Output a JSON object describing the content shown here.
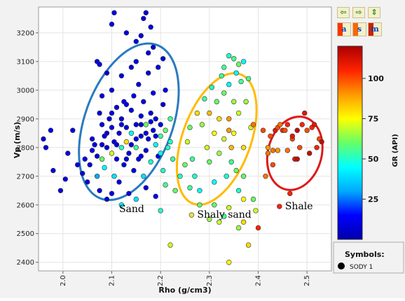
{
  "chart_data": {
    "type": "scatter",
    "title": "",
    "xlabel": "Rho (g/cm3)",
    "ylabel": "Vp (m/s)",
    "xlim": [
      1.95,
      2.55
    ],
    "ylim": [
      2370,
      3290
    ],
    "xticks": [
      2.0,
      2.1,
      2.2,
      2.3,
      2.4,
      2.5
    ],
    "xtick_labels": [
      "2.0",
      "2.1",
      "2.2",
      "2.3",
      "2.4",
      "2.5"
    ],
    "yticks": [
      2400,
      2500,
      2600,
      2700,
      2800,
      2900,
      3000,
      3100,
      3200
    ],
    "ytick_labels": [
      "2400",
      "2500",
      "2600",
      "2700",
      "2800",
      "2900",
      "3000",
      "3100",
      "3200"
    ],
    "grid": true,
    "colorbar": {
      "label": "GR (API)",
      "range": [
        0,
        120
      ],
      "ticks": [
        25,
        50,
        75,
        100
      ],
      "tick_labels": [
        "25",
        "50",
        "75",
        "100"
      ],
      "colormap": [
        "#0000aa",
        "#0000ff",
        "#00aaff",
        "#00ffff",
        "#66ff66",
        "#ffff00",
        "#ff9900",
        "#ff2200",
        "#aa0000"
      ]
    },
    "legend": {
      "title": "Symbols:",
      "entries": [
        {
          "label": "SODY 1",
          "color": "#000000"
        }
      ]
    },
    "annotations": [
      {
        "text": "Sand",
        "x": 2.115,
        "y": 2575,
        "color": "#000000"
      },
      {
        "text": "Shaly sand",
        "x": 2.275,
        "y": 2555,
        "color": "#000000",
        "marker_color": "#f0e040"
      },
      {
        "text": "Shale",
        "x": 2.455,
        "y": 2585,
        "color": "#000000",
        "marker_color": "#ff2200"
      }
    ],
    "ellipses": [
      {
        "name": "Sand",
        "cx": 2.135,
        "cy": 2890,
        "rx": 0.09,
        "ry": 285,
        "rotation": 20,
        "color": "#2a7ac0"
      },
      {
        "name": "Shaly sand",
        "cx": 2.315,
        "cy": 2830,
        "rx": 0.07,
        "ry": 240,
        "rotation": 20,
        "color": "#ffbb00"
      },
      {
        "name": "Shale",
        "cx": 2.475,
        "cy": 2780,
        "rx": 0.055,
        "ry": 130,
        "rotation": 15,
        "color": "#e01818"
      }
    ],
    "series": [
      {
        "points": [
          [
            1.96,
            2830,
            10
          ],
          [
            1.965,
            2800,
            10
          ],
          [
            1.975,
            2860,
            12
          ],
          [
            1.98,
            2720,
            10
          ],
          [
            1.995,
            2650,
            10
          ],
          [
            2.005,
            2690,
            12
          ],
          [
            2.01,
            2780,
            10
          ],
          [
            2.02,
            2860,
            10
          ],
          [
            2.03,
            2740,
            12
          ],
          [
            2.04,
            2710,
            10
          ],
          [
            2.045,
            2760,
            15
          ],
          [
            2.05,
            2680,
            10
          ],
          [
            2.055,
            2740,
            10
          ],
          [
            2.06,
            2830,
            12
          ],
          [
            2.065,
            2810,
            10
          ],
          [
            2.07,
            2770,
            8
          ],
          [
            2.07,
            2700,
            30
          ],
          [
            2.075,
            2650,
            10
          ],
          [
            2.075,
            2920,
            10
          ],
          [
            2.08,
            2880,
            12
          ],
          [
            2.08,
            2760,
            60
          ],
          [
            2.085,
            2840,
            10
          ],
          [
            2.085,
            2730,
            45
          ],
          [
            2.09,
            2800,
            10
          ],
          [
            2.09,
            2620,
            10
          ],
          [
            2.095,
            2900,
            8
          ],
          [
            2.1,
            3000,
            10
          ],
          [
            2.1,
            2870,
            12
          ],
          [
            2.1,
            2780,
            70
          ],
          [
            2.105,
            2820,
            10
          ],
          [
            2.105,
            2700,
            40
          ],
          [
            2.11,
            2940,
            10
          ],
          [
            2.11,
            2760,
            15
          ],
          [
            2.115,
            2850,
            8
          ],
          [
            2.115,
            2680,
            10
          ],
          [
            2.12,
            3050,
            10
          ],
          [
            2.12,
            2800,
            50
          ],
          [
            2.12,
            2900,
            10
          ],
          [
            2.125,
            2740,
            10
          ],
          [
            2.125,
            2960,
            12
          ],
          [
            2.13,
            2870,
            10
          ],
          [
            2.13,
            2820,
            80
          ],
          [
            2.135,
            2780,
            10
          ],
          [
            2.135,
            2640,
            10
          ],
          [
            2.14,
            2930,
            10
          ],
          [
            2.14,
            2850,
            45
          ],
          [
            2.145,
            2720,
            10
          ],
          [
            2.145,
            2980,
            12
          ],
          [
            2.15,
            2880,
            10
          ],
          [
            2.15,
            2800,
            55
          ],
          [
            2.155,
            2760,
            10
          ],
          [
            2.155,
            3020,
            10
          ],
          [
            2.16,
            2910,
            12
          ],
          [
            2.16,
            2840,
            10
          ],
          [
            2.165,
            2700,
            40
          ],
          [
            2.165,
            2960,
            10
          ],
          [
            2.17,
            2880,
            60
          ],
          [
            2.17,
            2790,
            10
          ],
          [
            2.175,
            3060,
            10
          ],
          [
            2.175,
            2830,
            12
          ],
          [
            2.18,
            2920,
            10
          ],
          [
            2.18,
            2750,
            50
          ],
          [
            2.185,
            2860,
            10
          ],
          [
            2.185,
            2990,
            15
          ],
          [
            2.19,
            2810,
            45
          ],
          [
            2.19,
            2900,
            10
          ],
          [
            2.195,
            3080,
            10
          ],
          [
            2.195,
            2770,
            12
          ],
          [
            2.2,
            2880,
            10
          ],
          [
            2.2,
            2840,
            55
          ],
          [
            2.205,
            2950,
            10
          ],
          [
            2.205,
            2720,
            50
          ],
          [
            2.21,
            2860,
            60
          ],
          [
            2.21,
            3000,
            12
          ],
          [
            2.215,
            2800,
            50
          ],
          [
            2.22,
            2900,
            55
          ],
          [
            2.06,
            2790,
            12
          ],
          [
            2.09,
            2850,
            10
          ],
          [
            2.11,
            2810,
            10
          ],
          [
            2.13,
            2760,
            10
          ],
          [
            2.15,
            2830,
            12
          ],
          [
            2.17,
            2850,
            10
          ],
          [
            2.19,
            2840,
            10
          ],
          [
            2.12,
            2880,
            12
          ],
          [
            2.14,
            2810,
            10
          ],
          [
            2.16,
            2770,
            12
          ],
          [
            2.18,
            2890,
            10
          ],
          [
            2.1,
            2920,
            10
          ],
          [
            2.13,
            2950,
            12
          ],
          [
            2.16,
            2880,
            10
          ],
          [
            2.08,
            2810,
            10
          ],
          [
            2.2,
            2780,
            45
          ],
          [
            2.22,
            2820,
            50
          ],
          [
            2.225,
            2760,
            55
          ],
          [
            2.1,
            3230,
            10
          ],
          [
            2.105,
            3270,
            12
          ],
          [
            2.13,
            3200,
            10
          ],
          [
            2.15,
            3170,
            12
          ],
          [
            2.165,
            3250,
            10
          ],
          [
            2.17,
            3270,
            10
          ],
          [
            2.18,
            3220,
            12
          ],
          [
            2.16,
            3190,
            10
          ],
          [
            2.14,
            3080,
            10
          ],
          [
            2.15,
            3100,
            12
          ],
          [
            2.175,
            3130,
            10
          ],
          [
            2.185,
            3150,
            10
          ],
          [
            2.07,
            3100,
            10
          ],
          [
            2.075,
            3090,
            12
          ],
          [
            2.09,
            3060,
            10
          ],
          [
            2.08,
            2980,
            10
          ],
          [
            2.205,
            3110,
            10
          ],
          [
            2.1,
            2640,
            12
          ],
          [
            2.15,
            2620,
            40
          ],
          [
            2.19,
            2630,
            15
          ],
          [
            2.12,
            2600,
            45
          ],
          [
            2.2,
            2580,
            50
          ],
          [
            2.17,
            2660,
            10
          ],
          [
            2.21,
            2670,
            55
          ],
          [
            2.23,
            2650,
            60
          ],
          [
            2.24,
            2700,
            50
          ],
          [
            2.25,
            2740,
            60
          ],
          [
            2.255,
            2820,
            70
          ],
          [
            2.26,
            2870,
            60
          ],
          [
            2.265,
            2760,
            55
          ],
          [
            2.27,
            2700,
            50
          ],
          [
            2.275,
            2920,
            80
          ],
          [
            2.28,
            2650,
            45
          ],
          [
            2.285,
            2880,
            65
          ],
          [
            2.29,
            2970,
            55
          ],
          [
            2.295,
            2800,
            70
          ],
          [
            2.3,
            2920,
            85
          ],
          [
            2.3,
            2750,
            60
          ],
          [
            2.305,
            3010,
            50
          ],
          [
            2.31,
            2850,
            75
          ],
          [
            2.31,
            2680,
            45
          ],
          [
            2.315,
            2960,
            60
          ],
          [
            2.32,
            2900,
            80
          ],
          [
            2.32,
            2780,
            65
          ],
          [
            2.325,
            3050,
            55
          ],
          [
            2.33,
            2990,
            60
          ],
          [
            2.33,
            2830,
            70
          ],
          [
            2.335,
            2700,
            50
          ],
          [
            2.34,
            3020,
            45
          ],
          [
            2.34,
            2900,
            90
          ],
          [
            2.345,
            2750,
            55
          ],
          [
            2.35,
            2960,
            65
          ],
          [
            2.35,
            2850,
            75
          ],
          [
            2.355,
            3060,
            45
          ],
          [
            2.36,
            2650,
            50
          ],
          [
            2.36,
            2920,
            70
          ],
          [
            2.365,
            3030,
            55
          ],
          [
            2.37,
            2800,
            80
          ],
          [
            2.37,
            2700,
            60
          ],
          [
            2.375,
            2960,
            65
          ],
          [
            2.38,
            3040,
            55
          ],
          [
            2.385,
            2870,
            70
          ],
          [
            2.39,
            2620,
            60
          ],
          [
            2.395,
            2580,
            70
          ],
          [
            2.35,
            3110,
            55
          ],
          [
            2.36,
            3090,
            60
          ],
          [
            2.34,
            3120,
            50
          ],
          [
            2.33,
            3080,
            55
          ],
          [
            2.37,
            3100,
            45
          ],
          [
            2.31,
            2600,
            60
          ],
          [
            2.3,
            2550,
            65
          ],
          [
            2.33,
            2560,
            55
          ],
          [
            2.32,
            2540,
            70
          ],
          [
            2.38,
            2460,
            80
          ],
          [
            2.22,
            2460,
            70
          ],
          [
            2.34,
            2400,
            75
          ],
          [
            2.36,
            2520,
            65
          ],
          [
            2.28,
            2600,
            60
          ],
          [
            2.26,
            2660,
            55
          ],
          [
            2.34,
            2590,
            70
          ],
          [
            2.37,
            2620,
            75
          ],
          [
            2.37,
            2540,
            80
          ],
          [
            2.355,
            2720,
            60
          ],
          [
            2.345,
            2800,
            85
          ],
          [
            2.34,
            2860,
            90
          ],
          [
            2.39,
            2880,
            95
          ],
          [
            2.41,
            2860,
            100
          ],
          [
            2.415,
            2700,
            95
          ],
          [
            2.42,
            2800,
            90
          ],
          [
            2.425,
            2840,
            100
          ],
          [
            2.43,
            2790,
            95
          ],
          [
            2.435,
            2860,
            110
          ],
          [
            2.44,
            2870,
            100
          ],
          [
            2.445,
            2880,
            95
          ],
          [
            2.45,
            2860,
            105
          ],
          [
            2.455,
            2860,
            100
          ],
          [
            2.46,
            2790,
            95
          ],
          [
            2.465,
            2640,
            105
          ],
          [
            2.47,
            2830,
            100
          ],
          [
            2.475,
            2760,
            110
          ],
          [
            2.48,
            2860,
            115
          ],
          [
            2.485,
            2800,
            100
          ],
          [
            2.49,
            2880,
            105
          ],
          [
            2.495,
            2920,
            110
          ],
          [
            2.5,
            2860,
            100
          ],
          [
            2.505,
            2780,
            115
          ],
          [
            2.51,
            2870,
            105
          ],
          [
            2.515,
            2880,
            110
          ],
          [
            2.52,
            2800,
            105
          ],
          [
            2.525,
            2830,
            100
          ],
          [
            2.53,
            2820,
            115
          ],
          [
            2.4,
            2520,
            105
          ],
          [
            2.44,
            2790,
            90
          ],
          [
            2.48,
            2760,
            115
          ],
          [
            2.47,
            2840,
            110
          ],
          [
            2.46,
            2880,
            105
          ],
          [
            2.42,
            2780,
            95
          ],
          [
            2.43,
            2740,
            100
          ]
        ]
      }
    ]
  },
  "toolbar": {
    "arrow_left_label": "⇦",
    "arrow_right_label": "⇨",
    "arrow_updown_label": "⇕",
    "btn_a_label": "a",
    "btn_s_label": "s",
    "btn_m_label": "m"
  }
}
